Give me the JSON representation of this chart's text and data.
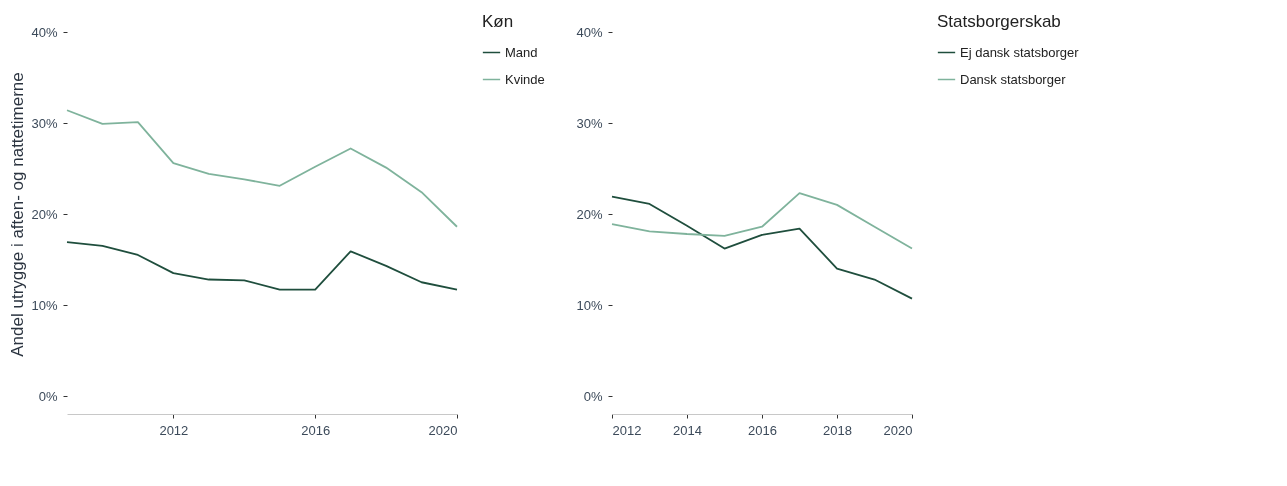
{
  "chart_data": [
    {
      "type": "line",
      "ylabel": "Andel utrygge i aften- og nattetimerne",
      "legend_title": "Køn",
      "legend": "right",
      "grid": false,
      "x": [
        2009,
        2010,
        2011,
        2012,
        2013,
        2014,
        2015,
        2016,
        2017,
        2018,
        2019,
        2020
      ],
      "xlim": [
        2009,
        2020
      ],
      "xticks": [
        2012,
        2016,
        2020
      ],
      "ylim": [
        0,
        40
      ],
      "yticks": [
        {
          "value": 0,
          "label": "0%"
        },
        {
          "value": 10,
          "label": "10%"
        },
        {
          "value": 20,
          "label": "20%"
        },
        {
          "value": 30,
          "label": "30%"
        },
        {
          "value": 40,
          "label": "40%"
        }
      ],
      "series": [
        {
          "name": "Mand",
          "color": "#1f4e3d",
          "values": [
            16.9,
            16.5,
            15.5,
            13.5,
            12.8,
            12.7,
            11.7,
            11.7,
            15.9,
            14.3,
            12.5,
            11.7
          ]
        },
        {
          "name": "Kvinde",
          "color": "#7fb39c",
          "values": [
            31.4,
            29.9,
            30.1,
            25.6,
            24.4,
            23.8,
            23.1,
            25.2,
            27.2,
            25.1,
            22.4,
            18.6
          ]
        }
      ]
    },
    {
      "type": "line",
      "legend_title": "Statsborgerskab",
      "legend": "right",
      "grid": false,
      "x": [
        2012,
        2013,
        2014,
        2015,
        2016,
        2017,
        2018,
        2019,
        2020
      ],
      "xlim": [
        2012,
        2020
      ],
      "xticks": [
        2012,
        2014,
        2016,
        2018,
        2020
      ],
      "ylim": [
        0,
        40
      ],
      "yticks": [
        {
          "value": 0,
          "label": "0%"
        },
        {
          "value": 10,
          "label": "10%"
        },
        {
          "value": 20,
          "label": "20%"
        },
        {
          "value": 30,
          "label": "30%"
        },
        {
          "value": 40,
          "label": "40%"
        }
      ],
      "series": [
        {
          "name": "Ej dansk statsborger",
          "color": "#1f4e3d",
          "values": [
            21.9,
            21.1,
            18.7,
            16.2,
            17.7,
            18.4,
            14.0,
            12.8,
            10.7
          ]
        },
        {
          "name": "Dansk statsborger",
          "color": "#7fb39c",
          "values": [
            18.9,
            18.1,
            17.8,
            17.6,
            18.6,
            22.3,
            21.0,
            18.6,
            16.2
          ]
        }
      ]
    }
  ]
}
